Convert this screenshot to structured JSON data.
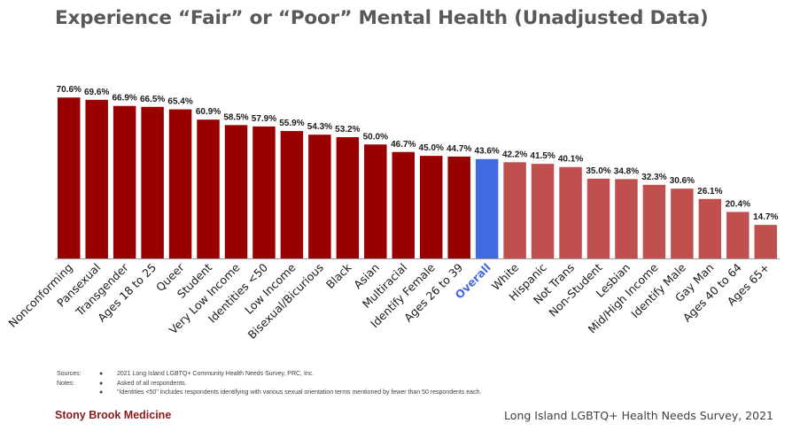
{
  "title": "Experience “Fair” or “Poor” Mental Health (Unadjusted Data)",
  "chart_data": {
    "type": "bar",
    "title": "Experience “Fair” or “Poor” Mental Health (Unadjusted Data)",
    "xlabel": "",
    "ylabel": "",
    "ylim": [
      0,
      80
    ],
    "value_suffix": "%",
    "categories": [
      "Nonconforming",
      "Pansexual",
      "Transgender",
      "Ages 18 to 25",
      "Queer",
      "Student",
      "Very Low Income",
      "Identities <50",
      "Low Income",
      "Bisexual/Bicurious",
      "Black",
      "Asian",
      "Multiracial",
      "Identify Female",
      "Ages 26 to 39",
      "Overall",
      "White",
      "Hispanic",
      "Not Trans",
      "Non-Student",
      "Lesbian",
      "Mid/High Income",
      "Identify Male",
      "Gay Man",
      "Ages 40 to 64",
      "Ages 65+"
    ],
    "values": [
      70.6,
      69.6,
      66.9,
      66.5,
      65.4,
      60.9,
      58.5,
      57.9,
      55.9,
      54.3,
      53.2,
      50.0,
      46.7,
      45.0,
      44.7,
      43.6,
      42.2,
      41.5,
      40.1,
      35.0,
      34.8,
      32.3,
      30.6,
      26.1,
      20.4,
      14.7
    ],
    "data_labels": [
      "70.6%",
      "69.6%",
      "66.9%",
      "66.5%",
      "65.4%",
      "60.9%",
      "58.5%",
      "57.9%",
      "55.9%",
      "54.3%",
      "53.2%",
      "50.0%",
      "46.7%",
      "45.0%",
      "44.7%",
      "43.6%",
      "42.2%",
      "41.5%",
      "40.1%",
      "35.0%",
      "34.8%",
      "32.3%",
      "30.6%",
      "26.1%",
      "20.4%",
      "14.7%"
    ],
    "highlight_category": "Overall",
    "colors": {
      "above_overall": "#990000",
      "overall": "#4169e1",
      "below_overall": "#c0504d",
      "overall_label": "#4169e1"
    },
    "grid": false,
    "legend": "none"
  },
  "notes": {
    "sources_key": "Sources:",
    "sources": [
      "2021 Long Island LGBTQ+ Community Health Needs Survey, PRC, Inc."
    ],
    "notes_key": "Notes:",
    "notes": [
      "Asked of all respondents.",
      "\"Identities <50\" includes respondents identifying with various sexual orientation terms mentioned by fewer than 50 respondents each."
    ],
    "bullet": "●"
  },
  "footer": {
    "brand": "Stony Brook Medicine",
    "survey": "Long Island LGBTQ+ Health Needs Survey, 2021"
  }
}
